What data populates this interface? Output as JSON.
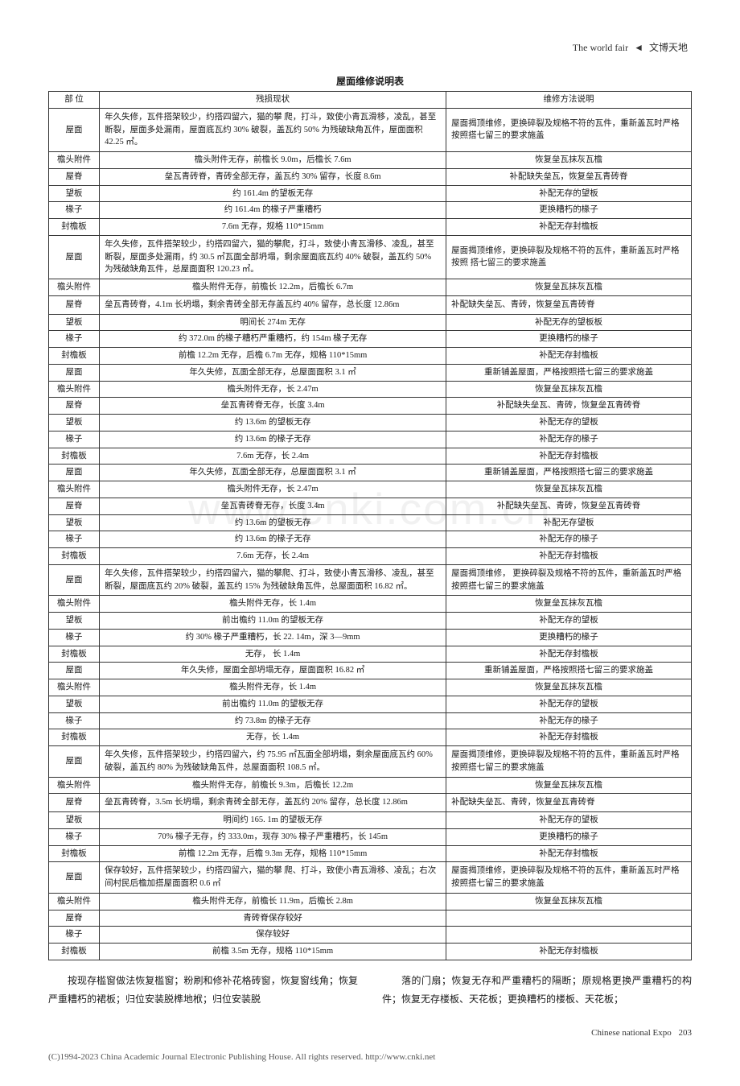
{
  "header": {
    "left_en": "The world fair",
    "sep": "◄",
    "right_zh": "文博天地"
  },
  "table_title": "屋面维修说明表",
  "columns": [
    "部 位",
    "残损现状",
    "维修方法说明"
  ],
  "rows": [
    {
      "part": "屋面",
      "status": "年久失修，瓦件搭架较少，约搭四留六，猫的攀 爬，打斗，致使小青瓦滑移，凌乱，甚至断裂，屋面多处漏雨，屋面底瓦约 30% 破裂，盖瓦约 50% 为残破缺角瓦件，屋面面积 42.25 ㎡。",
      "method": "屋面揭顶维修，更换碎裂及规格不符的瓦件，重新盖瓦时严格按照搭七留三的要求施盖",
      "multiline": true
    },
    {
      "part": "檐头附件",
      "status": "檐头附件无存，前檐长 9.0m，后檐长 7.6m",
      "method": "恢复垒瓦抹灰瓦檐"
    },
    {
      "part": "屋脊",
      "status": "垒瓦青砖脊，青砖全部无存，盖瓦约 30% 留存，长度 8.6m",
      "method": "补配缺失垒瓦，恢复垒瓦青砖脊"
    },
    {
      "part": "望板",
      "status": "约 161.4m 的望板无存",
      "method": "补配无存的望板"
    },
    {
      "part": "椽子",
      "status": "约 161.4m 的椽子严重糟朽",
      "method": "更换糟朽的椽子"
    },
    {
      "part": "封檐板",
      "status": "7.6m 无存，规格 110*15mm",
      "method": "补配无存封檐板"
    },
    {
      "part": "屋面",
      "status": "年久失修，瓦件搭架较少，约搭四留六，猫的攀爬，打斗，致使小青瓦滑移、凌乱，甚至断裂，屋面多处漏雨，约 30.5 ㎡瓦面全部坍塌，剩余屋面底瓦约 40% 破裂，盖瓦约 50% 为残破缺角瓦件，总屋面面积 120.23 ㎡。",
      "method": "屋面揭顶维修，更换碎裂及规格不符的瓦件，重新盖瓦时严格按照 搭七留三的要求施盖",
      "multiline": true
    },
    {
      "part": "檐头附件",
      "status": "檐头附件无存，前檐长 12.2m，后檐长 6.7m",
      "method": "恢复垒瓦抹灰瓦檐"
    },
    {
      "part": "屋脊",
      "status": "垒瓦青砖脊，4.1m 长坍塌，剩余青砖全部无存盖瓦约 40% 留存，总长度 12.86m",
      "method": "补配缺失垒瓦、青砖，恢复垒瓦青砖脊",
      "multiline": true
    },
    {
      "part": "望板",
      "status": "明间长 274m 无存",
      "method": "补配无存的望板板"
    },
    {
      "part": "椽子",
      "status": "约 372.0m 的椽子糟朽严重糟朽，约 154m 椽子无存",
      "method": "更换糟朽的椽子"
    },
    {
      "part": "封檐板",
      "status": "前檐 12.2m 无存，后檐 6.7m 无存，规格 110*15mm",
      "method": "补配无存封檐板"
    },
    {
      "part": "屋面",
      "status": "年久失修，瓦面全部无存，总屋面面积 3.1 ㎡",
      "method": "重新铺盖屋面，严格按照搭七留三的要求施盖"
    },
    {
      "part": "檐头附件",
      "status": "檐头附件无存，长 2.47m",
      "method": "恢复垒瓦抹灰瓦檐"
    },
    {
      "part": "屋脊",
      "status": "垒瓦青砖脊无存，长度 3.4m",
      "method": "补配缺失垒瓦、青砖，恢复垒瓦青砖脊"
    },
    {
      "part": "望板",
      "status": "约 13.6m 的望板无存",
      "method": "补配无存的望板"
    },
    {
      "part": "椽子",
      "status": "约 13.6m 的椽子无存",
      "method": "补配无存的椽子"
    },
    {
      "part": "封檐板",
      "status": "7.6m 无存，长 2.4m",
      "method": "补配无存封檐板"
    },
    {
      "part": "屋面",
      "status": "年久失修，瓦面全部无存，总屋面面积 3.1 ㎡",
      "method": "重新铺盖屋面，严格按照搭七留三的要求施盖"
    },
    {
      "part": "檐头附件",
      "status": "檐头附件无存，长 2.47m",
      "method": "恢复垒瓦抹灰瓦檐"
    },
    {
      "part": "屋脊",
      "status": "垒瓦青砖脊无存，长度 3.4m",
      "method": "补配缺失垒瓦、青砖，恢复垒瓦青砖脊"
    },
    {
      "part": "望板",
      "status": "约 13.6m 的望板无存",
      "method": "补配无存望板"
    },
    {
      "part": "椽子",
      "status": "约 13.6m 的椽子无存",
      "method": "补配无存的椽子"
    },
    {
      "part": "封檐板",
      "status": "7.6m 无存，长 2.4m",
      "method": "补配无存封檐板"
    },
    {
      "part": "屋面",
      "status": "年久失修，瓦件搭架较少，约搭四留六，猫的攀爬、打斗，致使小青瓦滑移、凌乱，甚至断裂，屋面底瓦约 20% 破裂，盖瓦约 15% 为残破缺角瓦件，总屋面面积 16.82 ㎡。",
      "method": "屋面揭顶维修， 更换碎裂及规格不符的瓦件，重新盖瓦时严格按照搭七留三的要求施盖",
      "multiline": true
    },
    {
      "part": "檐头附件",
      "status": "檐头附件无存，长 1.4m",
      "method": "恢复垒瓦抹灰瓦檐"
    },
    {
      "part": "望板",
      "status": "前出檐约 11.0m 的望板无存",
      "method": "补配无存的望板"
    },
    {
      "part": "椽子",
      "status": "约 30% 椽子严重糟朽，长 22. 14m，深 3—9mm",
      "method": "更换糟朽的椽子"
    },
    {
      "part": "封檐板",
      "status": "无存， 长 1.4m",
      "method": "补配无存封檐板"
    },
    {
      "part": "屋面",
      "status": "年久失修，屋面全部坍塌无存，屋面面积 16.82 ㎡",
      "method": "重新铺盖屋面，严格按照搭七留三的要求施盖"
    },
    {
      "part": "檐头附件",
      "status": "檐头附件无存，长 1.4m",
      "method": "恢复垒瓦抹灰瓦檐"
    },
    {
      "part": "望板",
      "status": "前出檐约 11.0m 的望板无存",
      "method": "补配无存的望板"
    },
    {
      "part": "椽子",
      "status": "约 73.8m 的椽子无存",
      "method": "补配无存的椽子"
    },
    {
      "part": "封檐板",
      "status": "无存，长 1.4m",
      "method": "补配无存封檐板"
    },
    {
      "part": "屋面",
      "status": "年久失修，瓦件搭架较少，约搭四留六，约 75.95 ㎡瓦面全部坍塌，剩余屋面底瓦约 60% 破裂，盖瓦约 80% 为残破缺角瓦件，总屋面面积 108.5 ㎡。",
      "method": "屋面揭顶维修，更换碎裂及规格不符的瓦件，重新盖瓦时严格按照搭七留三的要求施盖",
      "multiline": true
    },
    {
      "part": "檐头附件",
      "status": "檐头附件无存，前檐长 9.3m，后檐长 12.2m",
      "method": "恢复垒瓦抹灰瓦檐"
    },
    {
      "part": "屋脊",
      "status": "垒瓦青砖脊，3.5m 长坍塌，剩余青砖全部无存，盖瓦约 20% 留存，总长度 12.86m",
      "method": "补配缺失垒瓦、青砖，恢复垒瓦青砖脊",
      "multiline": true
    },
    {
      "part": "望板",
      "status": "明间约 165. 1m 的望板无存",
      "method": "补配无存的望板"
    },
    {
      "part": "椽子",
      "status": "70% 椽子无存，约 333.0m，现存 30% 椽子严重糟朽，长 145m",
      "method": "更换糟朽的椽子"
    },
    {
      "part": "封檐板",
      "status": "前檐 12.2m 无存，后檐 9.3m 无存，规格 110*15mm",
      "method": "补配无存封檐板"
    },
    {
      "part": "屋面",
      "status": "保存较好，瓦件搭架较少，约搭四留六，猫的攀 爬、打斗，致使小青瓦滑移、凌乱；右次间村民后檐加搭屋面面积 0.6 ㎡",
      "method": "屋面揭顶维修，更换碎裂及规格不符的瓦件，重新盖瓦时严格按照搭七留三的要求施盖",
      "multiline": true
    },
    {
      "part": "檐头附件",
      "status": "檐头附件无存，前檐长 11.9m，后檐长 2.8m",
      "method": "恢复垒瓦抹灰瓦檐"
    },
    {
      "part": "屋脊",
      "status": "青砖脊保存较好",
      "method": ""
    },
    {
      "part": "椽子",
      "status": "保存较好",
      "method": ""
    },
    {
      "part": "封檐板",
      "status": "前檐 3.5m 无存，规格 110*15mm",
      "method": "补配无存封檐板"
    }
  ],
  "body_text": {
    "col1": "按现存槛窗做法恢复槛窗；粉刷和修补花格砖窗，恢复窗线角；恢复严重糟朽的裙板；归位安装脱榫地栿；归位安装脱",
    "col2": "落的门扇；恢复无存和严重糟朽的隔断；原规格更换严重糟朽的构件；恢复无存楼板、天花板；更换糟朽的楼板、天花板；"
  },
  "footer": {
    "journal": "Chinese national Expo",
    "page": "203"
  },
  "copyright": "(C)1994-2023 China Academic Journal Electronic Publishing House. All rights reserved.    http://www.cnki.net",
  "watermark": "www.cnki.com.cn"
}
